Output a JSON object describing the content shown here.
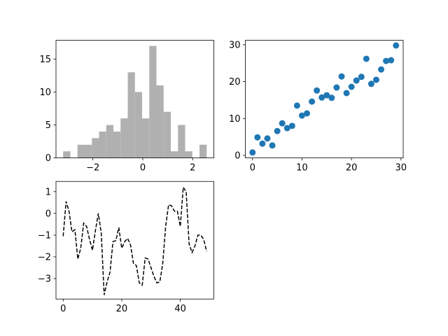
{
  "chart_data": [
    {
      "type": "hist",
      "color": "#b0b0b0",
      "bins": [
        -3.19,
        -2.9025,
        -2.615,
        -2.3275,
        -2.04,
        -1.7525,
        -1.465,
        -1.1775,
        -0.89,
        -0.6025,
        -0.315,
        -0.0275,
        0.26,
        0.5475,
        0.835,
        1.1225,
        1.41,
        1.6975,
        1.985,
        2.2725,
        2.56
      ],
      "counts": [
        1,
        0,
        2,
        2,
        3,
        4,
        5,
        4,
        6,
        13,
        10,
        6,
        17,
        11,
        7,
        1,
        5,
        1,
        0,
        2
      ],
      "xlim": [
        -3.4775,
        2.8475
      ],
      "xticks": [
        {
          "value": -2,
          "label": "−2"
        },
        0,
        2
      ],
      "ylim": [
        0,
        17.85
      ],
      "yticks": [
        0,
        5,
        10,
        15
      ]
    },
    {
      "type": "scatter",
      "color": "#1f77b4",
      "x": [
        0,
        1,
        2,
        3,
        4,
        5,
        6,
        7,
        8,
        9,
        10,
        11,
        12,
        13,
        14,
        15,
        16,
        17,
        18,
        19,
        20,
        21,
        22,
        23,
        24,
        25,
        26,
        27,
        28,
        29
      ],
      "values": [
        0.8,
        4.9,
        3.2,
        4.6,
        2.7,
        6.6,
        8.7,
        7.4,
        8.0,
        13.5,
        10.8,
        11.4,
        14.6,
        17.6,
        15.7,
        16.3,
        15.6,
        18.4,
        21.4,
        16.9,
        18.6,
        20.3,
        21.3,
        26.2,
        19.4,
        20.5,
        23.3,
        25.6,
        25.8,
        29.8
      ],
      "xlim": [
        -1.45,
        30.45
      ],
      "xticks": [
        0,
        10,
        20,
        30
      ],
      "ylim": [
        -0.68,
        31.2
      ],
      "yticks": [
        0,
        10,
        20,
        30
      ]
    },
    {
      "type": "line",
      "color": "#000000",
      "linestyle": "dashed",
      "x": [
        0,
        1,
        2,
        3,
        4,
        5,
        6,
        7,
        8,
        9,
        10,
        11,
        12,
        13,
        14,
        15,
        16,
        17,
        18,
        19,
        20,
        21,
        22,
        23,
        24,
        25,
        26,
        27,
        28,
        29,
        30,
        31,
        32,
        33,
        34,
        35,
        36,
        37,
        38,
        39,
        40,
        41,
        42,
        43,
        44,
        45,
        46,
        47,
        48,
        49
      ],
      "values": [
        -1.05,
        0.55,
        0.1,
        -0.85,
        -0.75,
        -2.1,
        -1.6,
        -0.45,
        -0.6,
        -1.2,
        -1.7,
        -0.8,
        0.0,
        -0.9,
        -3.75,
        -3.15,
        -2.7,
        -1.3,
        -1.25,
        -0.65,
        -1.6,
        -1.3,
        -1.15,
        -1.45,
        -2.3,
        -2.4,
        -3.2,
        -3.3,
        -2.05,
        -2.1,
        -2.5,
        -2.9,
        -3.2,
        -3.15,
        -2.3,
        -0.6,
        0.4,
        0.35,
        0.1,
        0.1,
        -0.6,
        1.2,
        1.0,
        -1.4,
        -1.8,
        -1.5,
        -1.0,
        -1.0,
        -1.2,
        -1.75
      ],
      "xlim": [
        -2.45,
        51.45
      ],
      "xticks": [
        0,
        20,
        40
      ],
      "ylim": [
        -3.94,
        1.47
      ],
      "yticks": [
        {
          "value": -3,
          "label": "−3"
        },
        {
          "value": -2,
          "label": "−2"
        },
        {
          "value": -1,
          "label": "−1"
        },
        0,
        1
      ]
    }
  ]
}
